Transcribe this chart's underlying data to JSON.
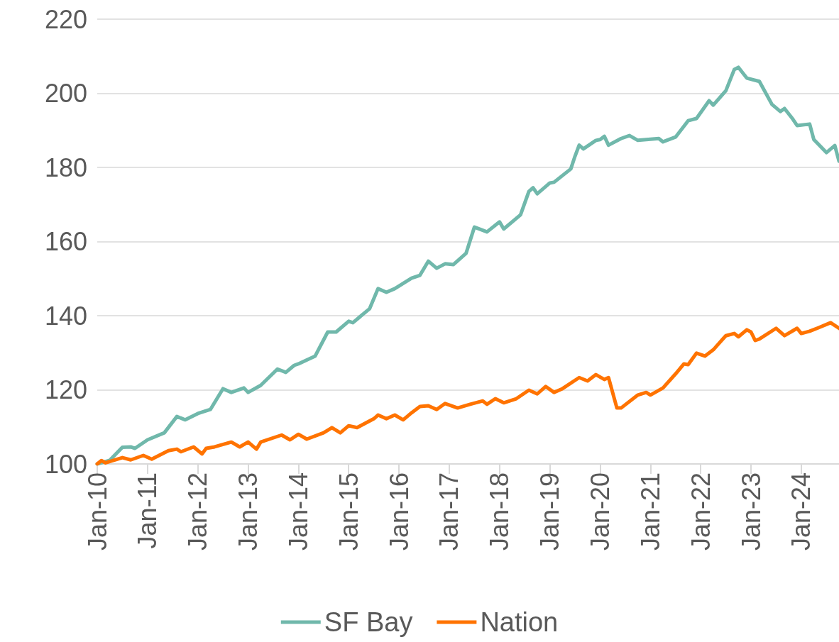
{
  "chart_data": {
    "type": "line",
    "xlim": [
      "2010-01",
      "2024-10"
    ],
    "ylim": [
      100,
      220
    ],
    "yticks": [
      100,
      120,
      140,
      160,
      180,
      200,
      220
    ],
    "xticks": [
      {
        "value": "2010-01",
        "label": "Jan-10"
      },
      {
        "value": "2011-01",
        "label": "Jan-11"
      },
      {
        "value": "2012-01",
        "label": "Jan-12"
      },
      {
        "value": "2013-01",
        "label": "Jan-13"
      },
      {
        "value": "2014-01",
        "label": "Jan-14"
      },
      {
        "value": "2015-01",
        "label": "Jan-15"
      },
      {
        "value": "2016-01",
        "label": "Jan-16"
      },
      {
        "value": "2017-01",
        "label": "Jan-17"
      },
      {
        "value": "2018-01",
        "label": "Jan-18"
      },
      {
        "value": "2019-01",
        "label": "Jan-19"
      },
      {
        "value": "2020-01",
        "label": "Jan-20"
      },
      {
        "value": "2021-01",
        "label": "Jan-21"
      },
      {
        "value": "2022-01",
        "label": "Jan-22"
      },
      {
        "value": "2023-01",
        "label": "Jan-23"
      },
      {
        "value": "2024-01",
        "label": "Jan-24"
      }
    ],
    "grid": "y",
    "legend": "bottom",
    "marker": "none",
    "line_style": "solid",
    "series": [
      {
        "name": "SF Bay",
        "color": "#70b8ab",
        "x": [
          "2010-01",
          "2010-04",
          "2010-07",
          "2010-09",
          "2010-10",
          "2011-01",
          "2011-05",
          "2011-08",
          "2011-10",
          "2012-01",
          "2012-04",
          "2012-07",
          "2012-09",
          "2012-12",
          "2013-01",
          "2013-04",
          "2013-08",
          "2013-10",
          "2013-12",
          "2014-01",
          "2014-05",
          "2014-08",
          "2014-10",
          "2015-01",
          "2015-02",
          "2015-06",
          "2015-08",
          "2015-10",
          "2015-12",
          "2016-04",
          "2016-06",
          "2016-08",
          "2016-10",
          "2016-12",
          "2017-02",
          "2017-05",
          "2017-07",
          "2017-10",
          "2018-01",
          "2018-02",
          "2018-06",
          "2018-08",
          "2018-09",
          "2018-10",
          "2019-01",
          "2019-02",
          "2019-06",
          "2019-07",
          "2019-08",
          "2019-09",
          "2019-12",
          "2020-01",
          "2020-02",
          "2020-03",
          "2020-06",
          "2020-08",
          "2020-10",
          "2021-03",
          "2021-04",
          "2021-07",
          "2021-10",
          "2021-12",
          "2022-03",
          "2022-04",
          "2022-07",
          "2022-09",
          "2022-10",
          "2022-12",
          "2023-03",
          "2023-06",
          "2023-08",
          "2023-09",
          "2023-11",
          "2023-12",
          "2024-03",
          "2024-04",
          "2024-07",
          "2024-09",
          "2024-10"
        ],
        "values": [
          100,
          101,
          104.5,
          104.6,
          104.2,
          106.5,
          108.4,
          112.8,
          111.9,
          113.6,
          114.7,
          120.3,
          119.3,
          120.5,
          119.3,
          121.2,
          125.6,
          124.7,
          126.6,
          127,
          129.1,
          135.6,
          135.6,
          138.5,
          138.1,
          141.9,
          147.3,
          146.3,
          147.3,
          150.1,
          150.9,
          154.7,
          152.8,
          154,
          153.8,
          156.8,
          163.9,
          162.6,
          165.3,
          163.4,
          167.2,
          173.5,
          174.5,
          172.9,
          175.8,
          176,
          179.6,
          183,
          186,
          185,
          187.3,
          187.5,
          188.4,
          186,
          187.8,
          188.6,
          187.3,
          187.8,
          186.9,
          188.2,
          192.6,
          193.2,
          198,
          196.8,
          200.7,
          206.4,
          207,
          204.1,
          203.2,
          197,
          195.1,
          195.9,
          193,
          191.3,
          191.7,
          187.5,
          184,
          185.9,
          181.7
        ]
      },
      {
        "name": "Nation",
        "color": "#ff7300",
        "x": [
          "2010-01",
          "2010-02",
          "2010-03",
          "2010-07",
          "2010-09",
          "2010-12",
          "2011-02",
          "2011-06",
          "2011-08",
          "2011-09",
          "2011-12",
          "2012-02",
          "2012-03",
          "2012-05",
          "2012-09",
          "2012-11",
          "2013-01",
          "2013-03",
          "2013-04",
          "2013-09",
          "2013-11",
          "2014-01",
          "2014-03",
          "2014-07",
          "2014-09",
          "2014-11",
          "2015-01",
          "2015-03",
          "2015-07",
          "2015-08",
          "2015-10",
          "2015-12",
          "2016-02",
          "2016-04",
          "2016-06",
          "2016-08",
          "2016-10",
          "2016-12",
          "2017-03",
          "2017-06",
          "2017-09",
          "2017-10",
          "2017-12",
          "2018-02",
          "2018-05",
          "2018-08",
          "2018-10",
          "2018-12",
          "2019-02",
          "2019-04",
          "2019-08",
          "2019-10",
          "2019-12",
          "2020-02",
          "2020-03",
          "2020-05",
          "2020-06",
          "2020-10",
          "2020-12",
          "2021-01",
          "2021-04",
          "2021-07",
          "2021-09",
          "2021-10",
          "2021-12",
          "2022-02",
          "2022-04",
          "2022-07",
          "2022-09",
          "2022-10",
          "2022-12",
          "2023-01",
          "2023-02",
          "2023-03",
          "2023-07",
          "2023-09",
          "2023-12",
          "2024-01",
          "2024-03",
          "2024-05",
          "2024-08",
          "2024-10"
        ],
        "values": [
          100,
          100.9,
          100.3,
          101.7,
          101.1,
          102.3,
          101.3,
          103.6,
          104,
          103.3,
          104.6,
          102.7,
          104.2,
          104.6,
          105.9,
          104.6,
          105.9,
          104,
          105.9,
          107.8,
          106.5,
          108,
          106.7,
          108.4,
          109.8,
          108.4,
          110.3,
          109.8,
          112.2,
          113.2,
          112.2,
          113.2,
          111.9,
          113.8,
          115.5,
          115.7,
          114.7,
          116.3,
          115.1,
          116.1,
          117,
          116.1,
          117.6,
          116.5,
          117.6,
          119.9,
          118.9,
          120.9,
          119.3,
          120.3,
          123.3,
          122.4,
          124.1,
          122.8,
          123.3,
          115.1,
          115.1,
          118.6,
          119.3,
          118.6,
          120.5,
          124.3,
          127,
          126.8,
          129.9,
          129.1,
          130.8,
          134.6,
          135.2,
          134.3,
          136.2,
          135.6,
          133.3,
          133.7,
          136.6,
          134.6,
          136.6,
          135.2,
          135.8,
          136.7,
          138.1,
          136.6
        ]
      }
    ]
  }
}
